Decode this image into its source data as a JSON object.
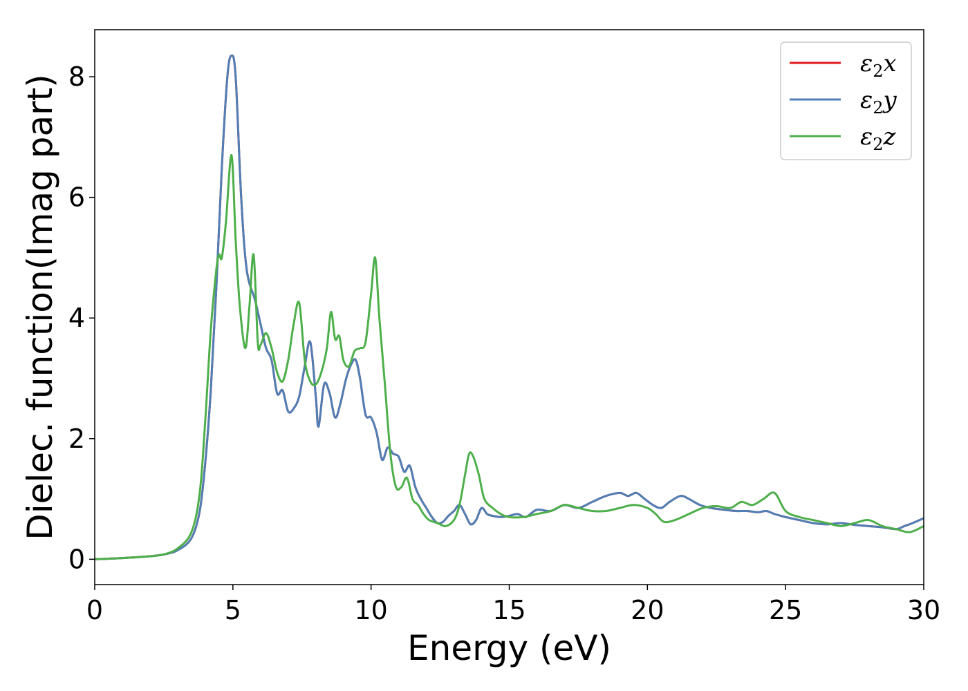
{
  "chart_data": {
    "type": "line",
    "xlabel": "Energy (eV)",
    "ylabel": "Dielec. function(Imag part)",
    "xlim": [
      0,
      30
    ],
    "ylim": [
      -0.42,
      8.78
    ],
    "xticks": [
      0,
      5,
      10,
      15,
      20,
      25,
      30
    ],
    "yticks": [
      0,
      2,
      4,
      6,
      8
    ],
    "xtick_labels": [
      "0",
      "5",
      "10",
      "15",
      "20",
      "25",
      "30"
    ],
    "ytick_labels": [
      "0",
      "2",
      "4",
      "6",
      "8"
    ],
    "grid": false,
    "legend_position": "top-right",
    "series": [
      {
        "name": "ε2x",
        "base": "ε",
        "sub": "2",
        "axis": "x",
        "color": "#e41a1c",
        "x": [
          0,
          1,
          2,
          2.5,
          3,
          3.5,
          3.8,
          4.0,
          4.2,
          4.4,
          4.6,
          4.8,
          4.95,
          5.1,
          5.3,
          5.5,
          5.8,
          6.0,
          6.2,
          6.4,
          6.6,
          6.8,
          7.0,
          7.2,
          7.4,
          7.6,
          7.8,
          8.0,
          8.1,
          8.3,
          8.5,
          8.7,
          8.9,
          9.1,
          9.3,
          9.45,
          9.6,
          9.8,
          10.0,
          10.2,
          10.4,
          10.6,
          10.8,
          11.0,
          11.2,
          11.4,
          11.6,
          11.8,
          12.0,
          12.2,
          12.4,
          12.6,
          12.8,
          13.0,
          13.2,
          13.4,
          13.6,
          13.8,
          14.0,
          14.2,
          14.4,
          14.7,
          15.0,
          15.3,
          15.6,
          16.0,
          16.5,
          17.0,
          17.5,
          18.0,
          18.5,
          19.0,
          19.3,
          19.6,
          19.9,
          20.2,
          20.5,
          20.8,
          21.2,
          21.5,
          21.9,
          22.3,
          22.8,
          23.2,
          23.6,
          24.0,
          24.3,
          24.6,
          25.0,
          25.5,
          26.0,
          26.5,
          27.0,
          27.5,
          28.0,
          28.5,
          29.0,
          29.3,
          29.6,
          30.0
        ],
        "y": [
          0,
          0.02,
          0.05,
          0.08,
          0.15,
          0.35,
          0.8,
          1.6,
          2.8,
          4.5,
          6.5,
          8.0,
          8.35,
          8.0,
          6.0,
          4.8,
          4.3,
          3.9,
          3.5,
          3.3,
          2.75,
          2.8,
          2.45,
          2.5,
          2.7,
          3.2,
          3.6,
          2.7,
          2.2,
          2.9,
          2.75,
          2.35,
          2.6,
          3.0,
          3.25,
          3.3,
          3.0,
          2.4,
          2.35,
          2.1,
          1.65,
          1.85,
          1.75,
          1.7,
          1.45,
          1.55,
          1.2,
          1.0,
          0.85,
          0.7,
          0.6,
          0.62,
          0.72,
          0.8,
          0.9,
          0.75,
          0.58,
          0.65,
          0.85,
          0.75,
          0.72,
          0.7,
          0.72,
          0.75,
          0.7,
          0.82,
          0.8,
          0.9,
          0.85,
          0.95,
          1.05,
          1.1,
          1.05,
          1.1,
          1.0,
          0.9,
          0.85,
          0.95,
          1.05,
          1.0,
          0.9,
          0.85,
          0.82,
          0.8,
          0.8,
          0.78,
          0.8,
          0.75,
          0.7,
          0.65,
          0.6,
          0.58,
          0.6,
          0.57,
          0.55,
          0.53,
          0.5,
          0.55,
          0.6,
          0.68
        ]
      },
      {
        "name": "ε2y",
        "base": "ε",
        "sub": "2",
        "axis": "y",
        "color": "#4f7fb5",
        "x": [
          0,
          1,
          2,
          2.5,
          3,
          3.5,
          3.8,
          4.0,
          4.2,
          4.4,
          4.6,
          4.8,
          4.95,
          5.1,
          5.3,
          5.5,
          5.8,
          6.0,
          6.2,
          6.4,
          6.6,
          6.8,
          7.0,
          7.2,
          7.4,
          7.6,
          7.8,
          8.0,
          8.1,
          8.3,
          8.5,
          8.7,
          8.9,
          9.1,
          9.3,
          9.45,
          9.6,
          9.8,
          10.0,
          10.2,
          10.4,
          10.6,
          10.8,
          11.0,
          11.2,
          11.4,
          11.6,
          11.8,
          12.0,
          12.2,
          12.4,
          12.6,
          12.8,
          13.0,
          13.2,
          13.4,
          13.6,
          13.8,
          14.0,
          14.2,
          14.4,
          14.7,
          15.0,
          15.3,
          15.6,
          16.0,
          16.5,
          17.0,
          17.5,
          18.0,
          18.5,
          19.0,
          19.3,
          19.6,
          19.9,
          20.2,
          20.5,
          20.8,
          21.2,
          21.5,
          21.9,
          22.3,
          22.8,
          23.2,
          23.6,
          24.0,
          24.3,
          24.6,
          25.0,
          25.5,
          26.0,
          26.5,
          27.0,
          27.5,
          28.0,
          28.5,
          29.0,
          29.3,
          29.6,
          30.0
        ],
        "y": [
          0,
          0.02,
          0.05,
          0.08,
          0.15,
          0.35,
          0.8,
          1.6,
          2.8,
          4.5,
          6.5,
          8.0,
          8.35,
          8.0,
          6.0,
          4.8,
          4.3,
          3.9,
          3.5,
          3.3,
          2.75,
          2.8,
          2.45,
          2.5,
          2.7,
          3.2,
          3.6,
          2.7,
          2.2,
          2.9,
          2.75,
          2.35,
          2.6,
          3.0,
          3.25,
          3.3,
          3.0,
          2.4,
          2.35,
          2.1,
          1.65,
          1.85,
          1.75,
          1.7,
          1.45,
          1.55,
          1.2,
          1.0,
          0.85,
          0.7,
          0.6,
          0.62,
          0.72,
          0.8,
          0.9,
          0.75,
          0.58,
          0.65,
          0.85,
          0.75,
          0.72,
          0.7,
          0.72,
          0.75,
          0.7,
          0.82,
          0.8,
          0.9,
          0.85,
          0.95,
          1.05,
          1.1,
          1.05,
          1.1,
          1.0,
          0.9,
          0.85,
          0.95,
          1.05,
          1.0,
          0.9,
          0.85,
          0.82,
          0.8,
          0.8,
          0.78,
          0.8,
          0.75,
          0.7,
          0.65,
          0.6,
          0.58,
          0.6,
          0.57,
          0.55,
          0.53,
          0.5,
          0.55,
          0.6,
          0.68
        ]
      },
      {
        "name": "ε2z",
        "base": "ε",
        "sub": "2",
        "axis": "z",
        "color": "#4daf4a",
        "x": [
          0,
          1,
          2,
          2.5,
          3,
          3.5,
          3.8,
          4.0,
          4.2,
          4.4,
          4.5,
          4.6,
          4.75,
          4.95,
          5.1,
          5.25,
          5.45,
          5.6,
          5.75,
          5.9,
          6.0,
          6.2,
          6.4,
          6.6,
          6.8,
          7.0,
          7.2,
          7.4,
          7.6,
          7.8,
          8.0,
          8.2,
          8.4,
          8.55,
          8.7,
          8.85,
          9.0,
          9.2,
          9.4,
          9.6,
          9.8,
          10.0,
          10.15,
          10.3,
          10.5,
          10.7,
          10.9,
          11.1,
          11.3,
          11.5,
          11.7,
          11.9,
          12.1,
          12.4,
          12.7,
          13.0,
          13.2,
          13.4,
          13.55,
          13.7,
          13.9,
          14.1,
          14.4,
          14.7,
          15.0,
          15.5,
          16.0,
          16.5,
          17.0,
          17.5,
          18.0,
          18.5,
          19.0,
          19.5,
          20.0,
          20.3,
          20.6,
          21.0,
          21.5,
          22.0,
          22.5,
          23.0,
          23.4,
          23.8,
          24.2,
          24.6,
          25.0,
          25.5,
          26.0,
          26.5,
          27.0,
          27.5,
          28.0,
          28.5,
          29.0,
          29.5,
          30.0
        ],
        "y": [
          0,
          0.02,
          0.05,
          0.08,
          0.18,
          0.45,
          1.1,
          2.3,
          3.8,
          4.8,
          5.05,
          5.0,
          5.6,
          6.7,
          5.3,
          4.2,
          3.5,
          4.2,
          5.05,
          3.6,
          3.55,
          3.75,
          3.5,
          3.1,
          2.95,
          3.3,
          3.9,
          4.25,
          3.3,
          2.95,
          2.9,
          3.1,
          3.5,
          4.1,
          3.65,
          3.7,
          3.3,
          3.2,
          3.45,
          3.5,
          3.6,
          4.4,
          5.0,
          4.0,
          2.9,
          1.75,
          1.2,
          1.2,
          1.35,
          1.0,
          0.9,
          0.75,
          0.65,
          0.6,
          0.55,
          0.65,
          0.9,
          1.4,
          1.75,
          1.7,
          1.4,
          1.0,
          0.85,
          0.75,
          0.7,
          0.7,
          0.75,
          0.8,
          0.9,
          0.85,
          0.8,
          0.8,
          0.85,
          0.9,
          0.85,
          0.75,
          0.62,
          0.65,
          0.75,
          0.85,
          0.88,
          0.85,
          0.95,
          0.9,
          1.0,
          1.1,
          0.8,
          0.7,
          0.65,
          0.6,
          0.55,
          0.6,
          0.65,
          0.55,
          0.5,
          0.45,
          0.55
        ]
      }
    ]
  }
}
